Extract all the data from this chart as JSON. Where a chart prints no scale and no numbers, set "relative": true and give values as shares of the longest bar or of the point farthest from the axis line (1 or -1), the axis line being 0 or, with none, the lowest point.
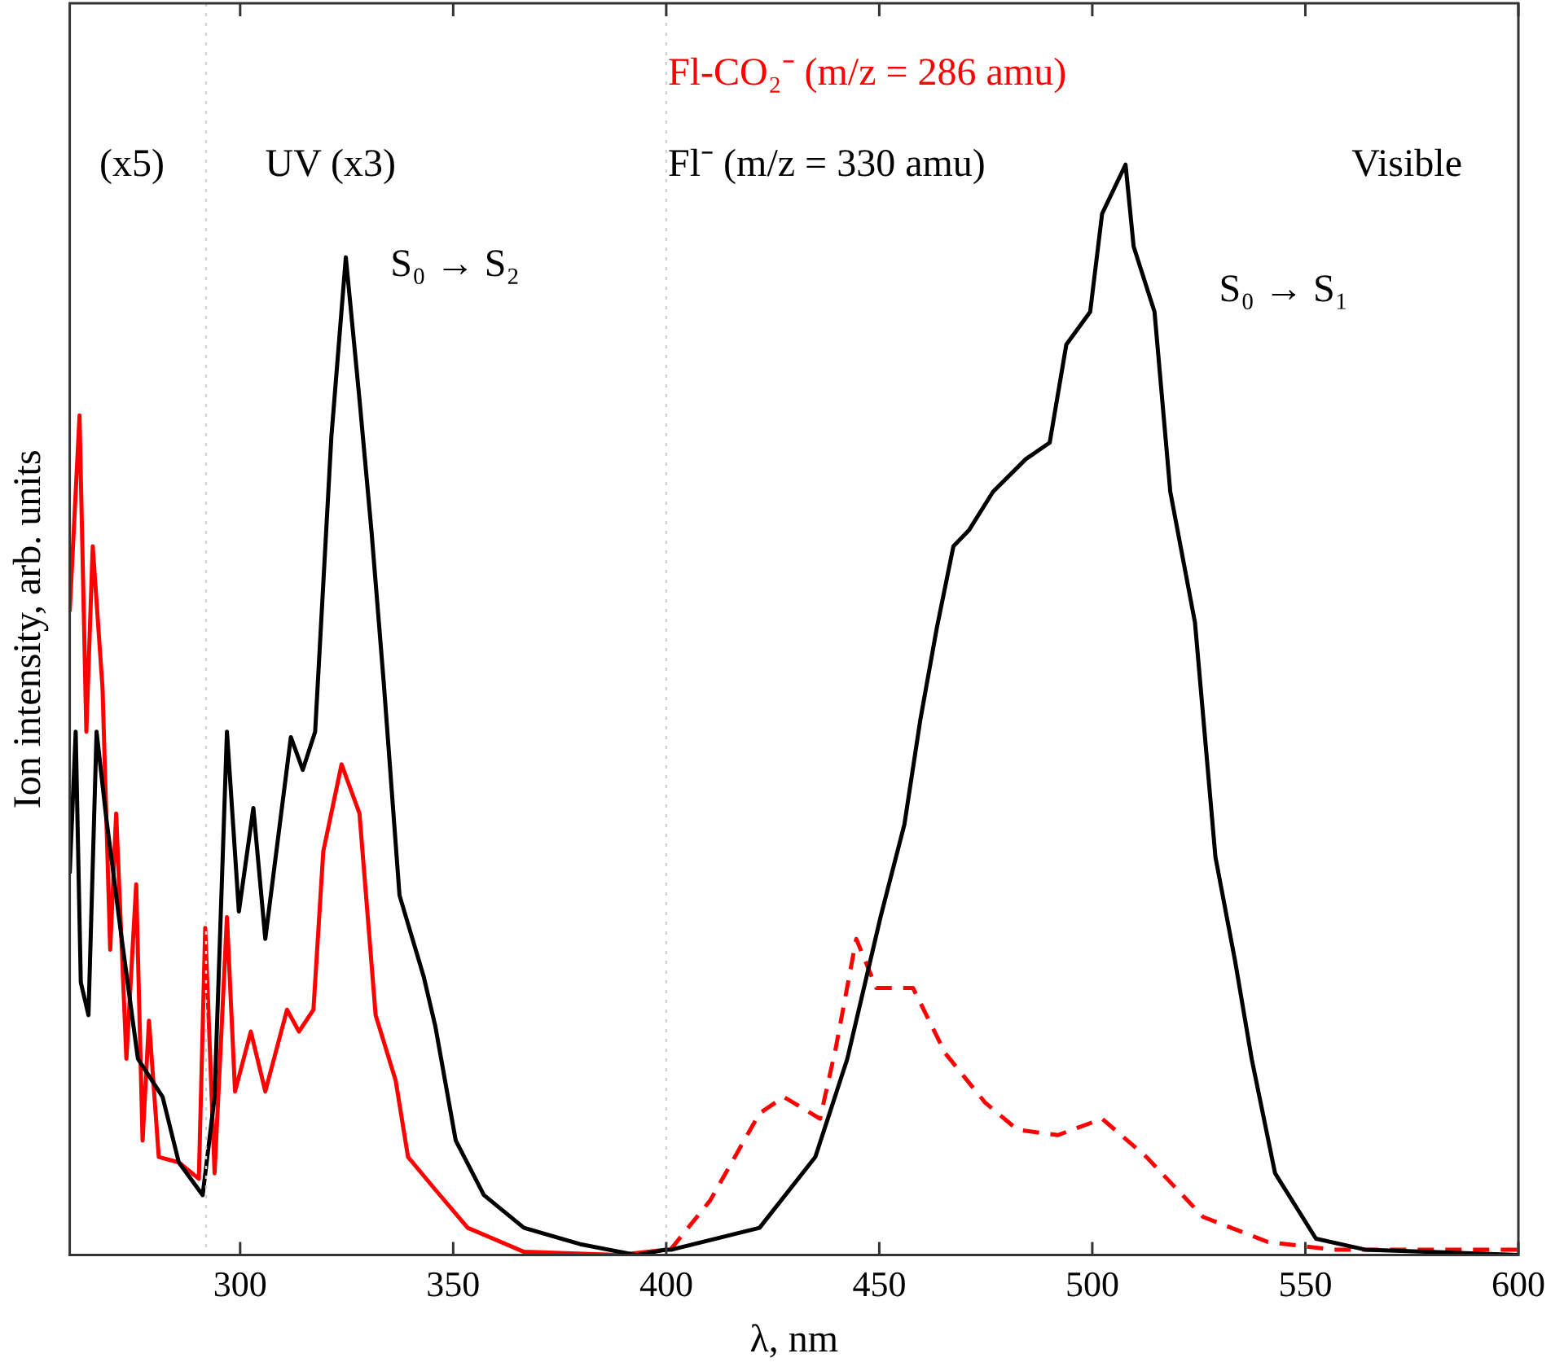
{
  "chart_data": {
    "type": "line",
    "relative": true,
    "xlabel": "λ, nm",
    "ylabel": "Ion intensity, arb. units",
    "xlim": [
      260,
      600
    ],
    "xticks": [
      300,
      350,
      400,
      450,
      500,
      550,
      600
    ],
    "grid": false,
    "legend": false,
    "marker": "none",
    "tick_labels": "x",
    "series": [
      {
        "name": "Fl⁻ (m/z = 330 amu)",
        "color": "#000000",
        "line_style": "solid",
        "x": [
          260,
          261.4,
          262.6,
          264.4,
          266.3,
          268.6,
          272.2,
          276,
          281.8,
          285.6,
          291.2,
          294,
          296.9,
          299.7,
          303.1,
          305.9,
          311.9,
          314.7,
          317.6,
          321.4,
          324.8,
          328,
          330.8,
          333.7,
          337.4,
          343.1,
          345.8,
          350.6,
          357.2,
          366.6,
          379.8,
          393,
          400,
          401.3,
          421.9,
          435,
          442.5,
          450.3,
          455.9,
          459.6,
          463.5,
          467.4,
          471.1,
          476.7,
          484.4,
          490,
          493.9,
          499.5,
          502.3,
          507.8,
          509.7,
          514.6,
          518.3,
          524.1,
          528.9,
          533.5,
          537.4,
          542.9,
          552.5,
          564,
          600
        ],
        "values": [
          0.35,
          0.48,
          0.25,
          0.22,
          0.48,
          0.4,
          0.29,
          0.18,
          0.145,
          0.085,
          0.055,
          0.145,
          0.48,
          0.315,
          0.41,
          0.29,
          0.475,
          0.445,
          0.48,
          0.75,
          0.915,
          0.785,
          0.665,
          0.525,
          0.33,
          0.255,
          0.21,
          0.105,
          0.055,
          0.025,
          0.01,
          0,
          0.005,
          0.005,
          0.025,
          0.09,
          0.18,
          0.31,
          0.395,
          0.49,
          0.575,
          0.65,
          0.665,
          0.7,
          0.73,
          0.745,
          0.835,
          0.865,
          0.955,
          1,
          0.925,
          0.865,
          0.7,
          0.58,
          0.365,
          0.27,
          0.18,
          0.075,
          0.015,
          0.005,
          0
        ]
      },
      {
        "color": "#ff0000",
        "line_style": "solid",
        "x": [
          260,
          262.3,
          263.9,
          265.4,
          267.7,
          269.5,
          270.9,
          273.3,
          275.6,
          277.1,
          278.6,
          280.9,
          285.6,
          290.3,
          291.8,
          294,
          296.9,
          298.8,
          302.5,
          305.9,
          311,
          313.8,
          317.2,
          319.5,
          323.8,
          328,
          331.8,
          336.5,
          339.4,
          345.8,
          353.4,
          366.6,
          388.8,
          400
        ],
        "values": [
          0.59,
          0.77,
          0.48,
          0.65,
          0.52,
          0.28,
          0.405,
          0.18,
          0.34,
          0.105,
          0.215,
          0.09,
          0.085,
          0.07,
          0.3,
          0.075,
          0.31,
          0.15,
          0.205,
          0.15,
          0.225,
          0.205,
          0.225,
          0.37,
          0.45,
          0.405,
          0.22,
          0.16,
          0.09,
          0.06,
          0.025,
          0.003,
          0,
          0.005
        ]
      },
      {
        "name": "Fl-CO₂⁻ (m/z = 286 amu)",
        "color": "#ff0000",
        "line_style": "dashed",
        "x": [
          401,
          410.3,
          421.9,
          427.6,
          436.1,
          439.8,
          444.6,
          449.3,
          457.9,
          465.5,
          474.8,
          482.4,
          491.9,
          502.3,
          512.7,
          526,
          541.2,
          556.3,
          600
        ],
        "values": [
          0.005,
          0.05,
          0.13,
          0.145,
          0.125,
          0.19,
          0.29,
          0.245,
          0.245,
          0.185,
          0.14,
          0.115,
          0.11,
          0.125,
          0.09,
          0.035,
          0.012,
          0.005,
          0.005
        ]
      }
    ],
    "ref_lines": [
      {
        "axis": "x",
        "value": 292,
        "color": "#d0d0d0",
        "line_style": "dotted"
      },
      {
        "axis": "x",
        "value": 400,
        "color": "#d0d0d0",
        "line_style": "dotted"
      }
    ],
    "annotations": [
      "(x5)",
      "UV (x3)",
      "S₀ → S₂",
      "Visible",
      "S₀ → S₁"
    ]
  }
}
